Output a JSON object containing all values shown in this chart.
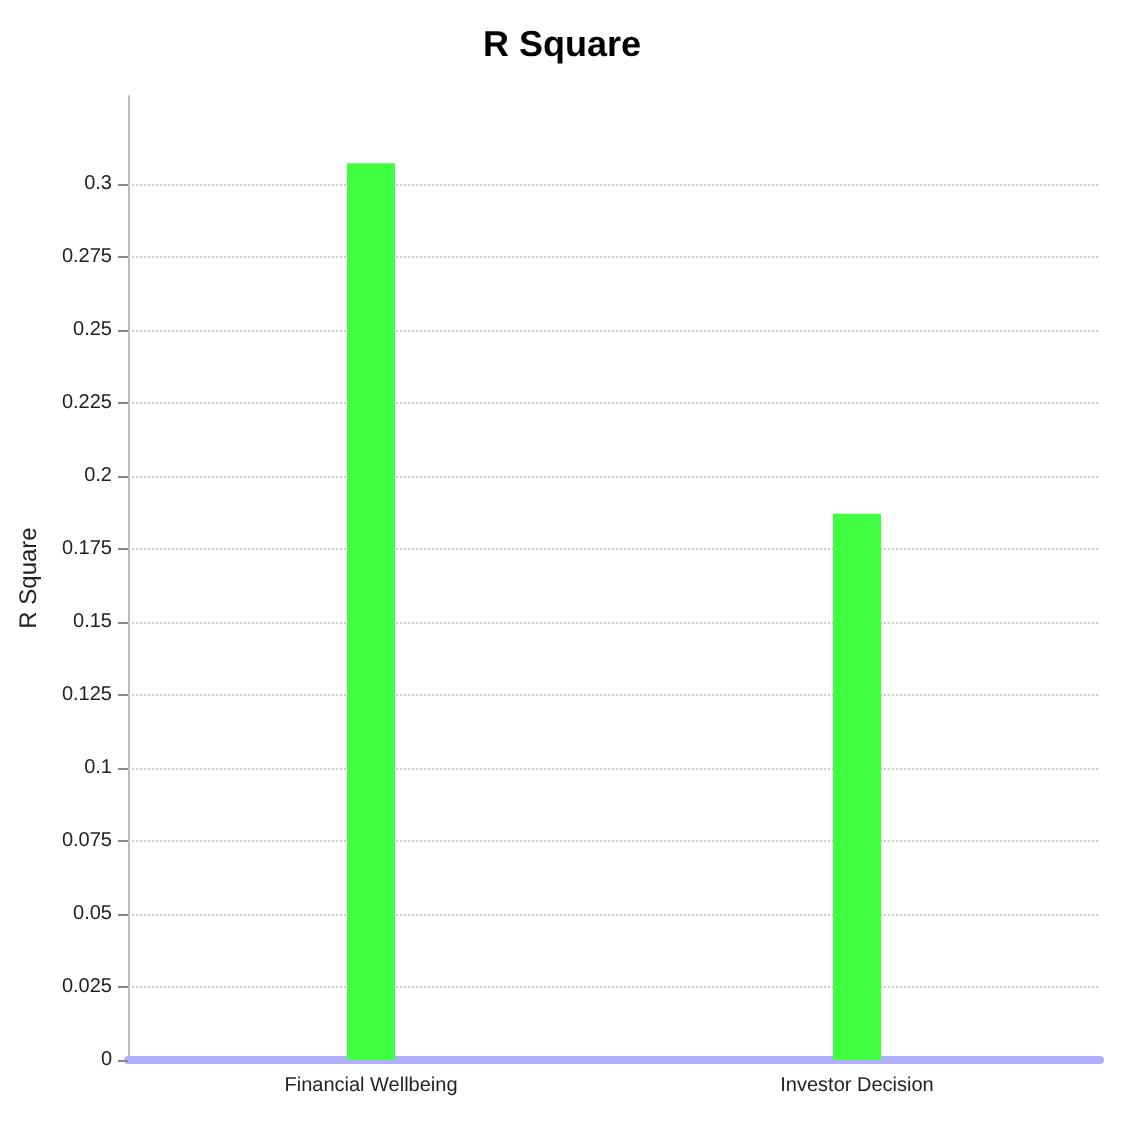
{
  "chart_data": {
    "type": "bar",
    "title": "R Square",
    "ylabel": "R Square",
    "categories": [
      "Financial Wellbeing",
      "Investor Decision"
    ],
    "values": [
      0.307,
      0.187
    ],
    "color": "#40ff40",
    "ylim": [
      0,
      0.33
    ],
    "yticks": [
      0,
      0.025,
      0.05,
      0.075,
      0.1,
      0.125,
      0.15,
      0.175,
      0.2,
      0.225,
      0.25,
      0.275,
      0.3
    ],
    "grid": "y"
  }
}
